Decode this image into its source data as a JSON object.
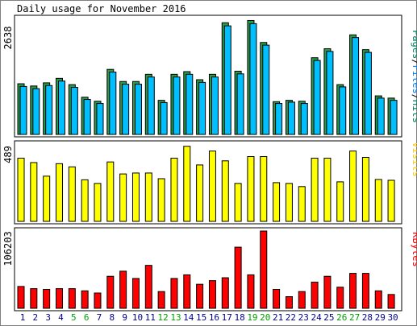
{
  "chart_data": [
    {
      "type": "bar",
      "title": "Daily usage for November 2016",
      "ylabel_max": "2638",
      "legend": [
        {
          "text": "Pages",
          "color": "#00805c"
        },
        {
          "text": "/",
          "color": "#000000"
        },
        {
          "text": "Files",
          "color": "#0080ff"
        },
        {
          "text": "/",
          "color": "#000000"
        },
        {
          "text": "Hits",
          "color": "#00805c"
        }
      ],
      "ylim": [
        0,
        2638
      ],
      "categories": [
        "1",
        "2",
        "3",
        "4",
        "5",
        "6",
        "7",
        "8",
        "9",
        "10",
        "11",
        "12",
        "13",
        "14",
        "15",
        "16",
        "17",
        "18",
        "19",
        "20",
        "21",
        "22",
        "23",
        "24",
        "25",
        "26",
        "27",
        "28",
        "29",
        "30"
      ],
      "series": [
        {
          "name": "Hits",
          "color": "#2a9b4a",
          "values": [
            1130,
            1080,
            1150,
            1250,
            1110,
            830,
            740,
            1450,
            1180,
            1180,
            1340,
            760,
            1340,
            1400,
            1220,
            1340,
            2490,
            1410,
            2540,
            2050,
            730,
            760,
            740,
            1710,
            1910,
            1110,
            2220,
            1890,
            860,
            810
          ]
        },
        {
          "name": "Files",
          "color": "#00bfff",
          "values": [
            1070,
            1020,
            1090,
            1190,
            1050,
            780,
            690,
            1390,
            1120,
            1120,
            1280,
            710,
            1280,
            1340,
            1160,
            1280,
            2420,
            1350,
            2470,
            1990,
            690,
            720,
            690,
            1650,
            1850,
            1060,
            2160,
            1830,
            810,
            760
          ]
        }
      ]
    },
    {
      "type": "bar",
      "ylabel_max": "489",
      "legend": [
        {
          "text": "Visits",
          "color": "#ffcc00"
        }
      ],
      "ylim": [
        0,
        489
      ],
      "categories": [
        "1",
        "2",
        "3",
        "4",
        "5",
        "6",
        "7",
        "8",
        "9",
        "10",
        "11",
        "12",
        "13",
        "14",
        "15",
        "16",
        "17",
        "18",
        "19",
        "20",
        "21",
        "22",
        "23",
        "24",
        "25",
        "26",
        "27",
        "28",
        "29",
        "30"
      ],
      "series": [
        {
          "name": "Visits",
          "color": "#ffff00",
          "values": [
            400,
            372,
            286,
            365,
            345,
            263,
            240,
            376,
            300,
            306,
            306,
            270,
            400,
            475,
            357,
            445,
            383,
            240,
            410,
            410,
            245,
            240,
            220,
            400,
            400,
            250,
            445,
            405,
            265,
            260
          ]
        }
      ]
    },
    {
      "type": "bar",
      "ylabel_max": "106203",
      "legend": [
        {
          "text": "KBytes",
          "color": "#ff0000"
        }
      ],
      "ylim": [
        0,
        106203
      ],
      "categories": [
        "1",
        "2",
        "3",
        "4",
        "5",
        "6",
        "7",
        "8",
        "9",
        "10",
        "11",
        "12",
        "13",
        "14",
        "15",
        "16",
        "17",
        "18",
        "19",
        "20",
        "21",
        "22",
        "23",
        "24",
        "25",
        "26",
        "27",
        "28",
        "29",
        "30"
      ],
      "series": [
        {
          "name": "KBytes",
          "color": "#ff0000",
          "values": [
            30000,
            27000,
            26000,
            27000,
            27000,
            24000,
            21000,
            44000,
            51000,
            41000,
            59000,
            23000,
            41000,
            46000,
            33000,
            38000,
            42000,
            84000,
            46000,
            106203,
            26000,
            16000,
            23000,
            36000,
            44000,
            29000,
            48000,
            48000,
            24000,
            19000
          ]
        }
      ]
    }
  ],
  "x_labels": {
    "days": [
      "1",
      "2",
      "3",
      "4",
      "5",
      "6",
      "7",
      "8",
      "9",
      "10",
      "11",
      "12",
      "13",
      "14",
      "15",
      "16",
      "17",
      "18",
      "19",
      "20",
      "21",
      "22",
      "23",
      "24",
      "25",
      "26",
      "27",
      "28",
      "29",
      "30"
    ],
    "weekend_days": [
      "5",
      "6",
      "12",
      "13",
      "19",
      "20",
      "26",
      "27"
    ],
    "weekday_color": "#00008b",
    "weekend_color": "#00a000"
  },
  "colors": {
    "background": "#ffffff",
    "frame_outer": "#808080",
    "frame_inner": "#000000",
    "bar_outline": "#000000"
  }
}
